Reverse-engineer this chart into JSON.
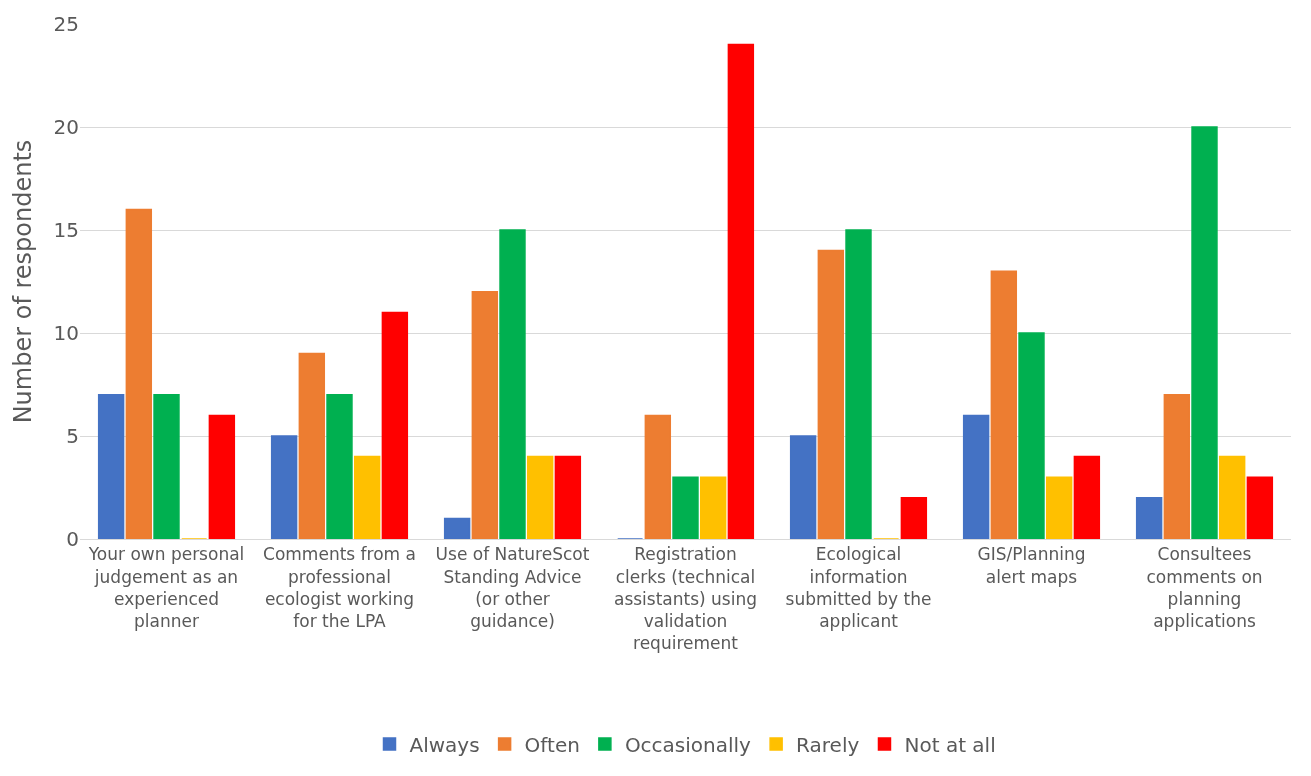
{
  "chart_data": {
    "type": "bar",
    "ylabel": "Number of respondents",
    "categories": [
      "Your own personal judgement as an experienced planner",
      "Comments from a professional ecologist working for the LPA",
      "Use of NatureScot Standing Advice (or other guidance)",
      "Registration clerks (technical assistants) using validation requirement",
      "Ecological information submitted by the applicant",
      "GIS/Planning alert maps",
      "Consultees comments on planning applications"
    ],
    "series": [
      {
        "name": "Always",
        "color": "#4472c4",
        "values": [
          7,
          5,
          1,
          0,
          5,
          6,
          2
        ]
      },
      {
        "name": "Often",
        "color": "#ed7d31",
        "values": [
          16,
          9,
          12,
          6,
          14,
          13,
          7
        ]
      },
      {
        "name": "Occasionally",
        "color": "#00b050",
        "values": [
          7,
          7,
          15,
          3,
          15,
          10,
          20
        ]
      },
      {
        "name": "Rarely",
        "color": "#ffc000",
        "values": [
          0,
          4,
          4,
          3,
          0,
          3,
          4
        ]
      },
      {
        "name": "Not at all",
        "color": "#ff0000",
        "values": [
          6,
          11,
          4,
          24,
          2,
          4,
          3
        ]
      }
    ],
    "ylim": [
      0,
      25
    ],
    "yticks": [
      0,
      5,
      10,
      15,
      20,
      25
    ],
    "grid": "y",
    "legend": "bottom"
  }
}
